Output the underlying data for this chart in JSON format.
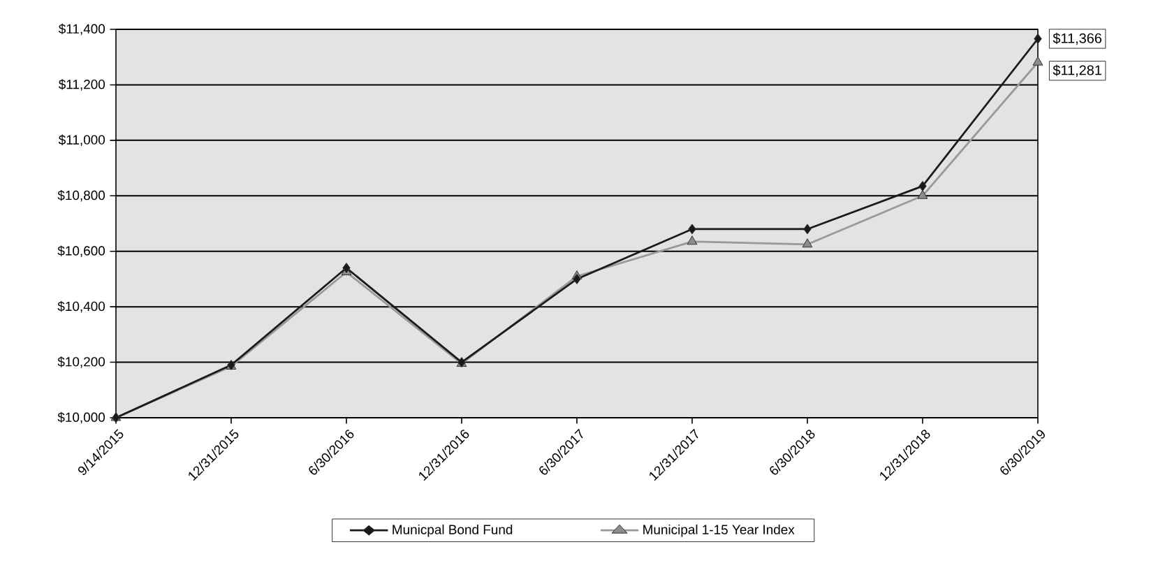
{
  "chart_data": {
    "type": "line",
    "categories": [
      "9/14/2015",
      "12/31/2015",
      "6/30/2016",
      "12/31/2016",
      "6/30/2017",
      "12/31/2017",
      "6/30/2018",
      "12/31/2018",
      "6/30/2019"
    ],
    "series": [
      {
        "name": "Municpal Bond Fund",
        "color": "#1a1a1a",
        "marker": "diamond",
        "values": [
          10000,
          10190,
          10540,
          10200,
          10500,
          10680,
          10680,
          10835,
          11366
        ],
        "value_labels": [
          null,
          null,
          null,
          null,
          null,
          null,
          null,
          null,
          "$11,366"
        ]
      },
      {
        "name": "Municipal 1-15 Year Index",
        "color": "#999999",
        "marker": "triangle",
        "values": [
          10000,
          10185,
          10525,
          10195,
          10510,
          10635,
          10625,
          10800,
          11281
        ],
        "value_labels": [
          null,
          null,
          null,
          null,
          null,
          null,
          null,
          null,
          "$11,281"
        ]
      }
    ],
    "ylim": [
      10000,
      11400
    ],
    "yticks": [
      {
        "value": 10000,
        "label": "$10,000"
      },
      {
        "value": 10200,
        "label": "$10,200"
      },
      {
        "value": 10400,
        "label": "$10,400"
      },
      {
        "value": 10600,
        "label": "$10,600"
      },
      {
        "value": 10800,
        "label": "$10,800"
      },
      {
        "value": 11000,
        "label": "$11,000"
      },
      {
        "value": 11200,
        "label": "$11,200"
      },
      {
        "value": 11400,
        "label": "$11,400"
      }
    ],
    "grid": "y",
    "legend": "bottom",
    "line_style": "solid"
  }
}
